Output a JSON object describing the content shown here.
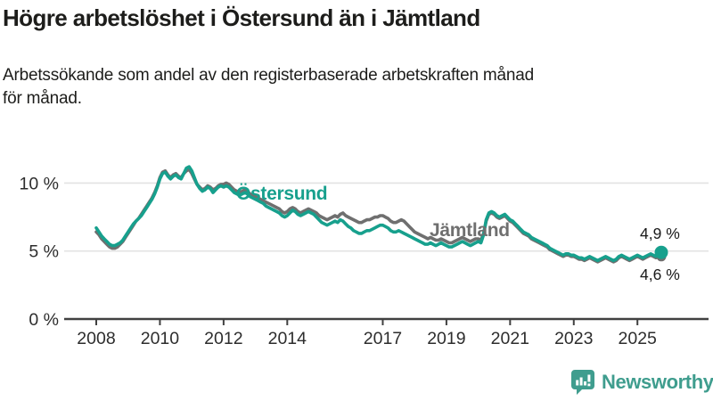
{
  "header": {
    "title": "Högre arbetslöshet i Östersund än i Jämtland",
    "subtitle": "Arbetssökande som andel av den registerbaserade arbetskraften månad\nför månad."
  },
  "chart_data": {
    "type": "line",
    "frequency": "monthly",
    "x_start": "2008-01",
    "x_end": "2025-10",
    "unit": "%",
    "ylim": [
      0,
      12
    ],
    "grid": "horizontal",
    "legend_position": "inline-labels",
    "x_ticks": [
      2008,
      2010,
      2012,
      2014,
      2017,
      2019,
      2021,
      2023,
      2025
    ],
    "y_ticks": [
      {
        "value": 0,
        "label": "0 %"
      },
      {
        "value": 5,
        "label": "5 %"
      },
      {
        "value": 10,
        "label": "10 %"
      }
    ],
    "series": [
      {
        "name": "Östersund",
        "color": "#17a08d",
        "end_label": "4,9 %",
        "end_value": 4.9,
        "values": [
          6.7,
          6.4,
          6.1,
          5.9,
          5.7,
          5.5,
          5.4,
          5.4,
          5.5,
          5.6,
          5.8,
          6.1,
          6.4,
          6.7,
          7.0,
          7.2,
          7.4,
          7.6,
          7.9,
          8.2,
          8.5,
          8.8,
          9.2,
          9.7,
          10.3,
          10.7,
          10.8,
          10.5,
          10.3,
          10.5,
          10.6,
          10.4,
          10.3,
          10.7,
          11.1,
          11.2,
          10.9,
          10.4,
          9.9,
          9.6,
          9.4,
          9.5,
          9.7,
          9.6,
          9.3,
          9.5,
          9.7,
          9.8,
          9.7,
          9.8,
          9.7,
          9.5,
          9.3,
          9.2,
          9.1,
          9.2,
          9.3,
          9.2,
          9.0,
          8.9,
          8.8,
          8.7,
          8.6,
          8.5,
          8.3,
          8.2,
          8.1,
          8.0,
          7.9,
          7.8,
          7.6,
          7.5,
          7.6,
          7.8,
          8.0,
          7.9,
          7.7,
          7.6,
          7.7,
          7.8,
          7.9,
          7.8,
          7.7,
          7.5,
          7.3,
          7.1,
          7.0,
          6.9,
          7.0,
          7.1,
          7.2,
          7.1,
          7.3,
          7.2,
          7.0,
          6.8,
          6.7,
          6.5,
          6.4,
          6.3,
          6.3,
          6.4,
          6.5,
          6.5,
          6.6,
          6.7,
          6.8,
          6.9,
          6.9,
          6.8,
          6.7,
          6.5,
          6.4,
          6.4,
          6.5,
          6.4,
          6.3,
          6.2,
          6.1,
          6.0,
          5.9,
          5.8,
          5.7,
          5.6,
          5.5,
          5.5,
          5.6,
          5.5,
          5.4,
          5.5,
          5.6,
          5.5,
          5.4,
          5.3,
          5.3,
          5.4,
          5.5,
          5.6,
          5.7,
          5.6,
          5.5,
          5.4,
          5.5,
          5.6,
          5.7,
          5.6,
          6.2,
          7.3,
          7.8,
          7.9,
          7.8,
          7.6,
          7.5,
          7.6,
          7.7,
          7.5,
          7.3,
          7.2,
          7.0,
          6.8,
          6.6,
          6.4,
          6.3,
          6.2,
          6.0,
          5.9,
          5.8,
          5.7,
          5.6,
          5.5,
          5.4,
          5.2,
          5.1,
          5.0,
          4.9,
          4.8,
          4.7,
          4.8,
          4.8,
          4.7,
          4.7,
          4.6,
          4.5,
          4.5,
          4.4,
          4.5,
          4.6,
          4.5,
          4.4,
          4.3,
          4.4,
          4.5,
          4.6,
          4.5,
          4.4,
          4.3,
          4.4,
          4.6,
          4.7,
          4.6,
          4.5,
          4.4,
          4.5,
          4.6,
          4.7,
          4.6,
          4.5,
          4.6,
          4.7,
          4.8,
          4.7,
          4.6,
          4.8,
          4.9
        ]
      },
      {
        "name": "Jämtland",
        "color": "#6f6f6f",
        "end_label": "4,6 %",
        "end_value": 4.6,
        "values": [
          6.4,
          6.2,
          5.9,
          5.7,
          5.5,
          5.3,
          5.2,
          5.2,
          5.3,
          5.5,
          5.7,
          6.0,
          6.3,
          6.6,
          6.9,
          7.2,
          7.4,
          7.7,
          8.0,
          8.3,
          8.6,
          8.9,
          9.3,
          9.8,
          10.4,
          10.8,
          10.9,
          10.6,
          10.4,
          10.6,
          10.7,
          10.5,
          10.4,
          10.7,
          10.9,
          11.0,
          10.7,
          10.3,
          9.9,
          9.7,
          9.5,
          9.6,
          9.8,
          9.7,
          9.5,
          9.6,
          9.8,
          9.9,
          9.9,
          10.0,
          9.9,
          9.7,
          9.5,
          9.4,
          9.3,
          9.4,
          9.5,
          9.4,
          9.2,
          9.1,
          9.0,
          8.9,
          8.8,
          8.7,
          8.6,
          8.5,
          8.4,
          8.3,
          8.2,
          8.1,
          7.9,
          7.8,
          7.9,
          8.1,
          8.2,
          8.1,
          7.9,
          7.8,
          7.9,
          8.0,
          8.1,
          8.0,
          7.9,
          7.8,
          7.6,
          7.5,
          7.4,
          7.3,
          7.4,
          7.5,
          7.6,
          7.5,
          7.7,
          7.8,
          7.6,
          7.5,
          7.4,
          7.3,
          7.2,
          7.1,
          7.1,
          7.2,
          7.3,
          7.3,
          7.4,
          7.5,
          7.5,
          7.6,
          7.6,
          7.5,
          7.4,
          7.2,
          7.1,
          7.1,
          7.2,
          7.3,
          7.2,
          7.0,
          6.8,
          6.6,
          6.4,
          6.3,
          6.2,
          6.1,
          6.0,
          5.9,
          6.0,
          5.9,
          5.8,
          5.8,
          5.9,
          5.8,
          5.7,
          5.6,
          5.6,
          5.7,
          5.8,
          5.9,
          6.0,
          5.9,
          5.8,
          5.7,
          5.8,
          5.9,
          5.9,
          5.8,
          6.3,
          7.2,
          7.7,
          7.8,
          7.7,
          7.5,
          7.4,
          7.5,
          7.6,
          7.4,
          7.2,
          7.1,
          6.9,
          6.7,
          6.5,
          6.3,
          6.2,
          6.1,
          5.9,
          5.8,
          5.7,
          5.6,
          5.5,
          5.4,
          5.3,
          5.1,
          5.0,
          4.9,
          4.8,
          4.7,
          4.6,
          4.7,
          4.7,
          4.6,
          4.6,
          4.5,
          4.4,
          4.4,
          4.3,
          4.4,
          4.5,
          4.4,
          4.3,
          4.2,
          4.3,
          4.4,
          4.5,
          4.4,
          4.3,
          4.2,
          4.3,
          4.5,
          4.6,
          4.5,
          4.4,
          4.3,
          4.4,
          4.5,
          4.6,
          4.5,
          4.4,
          4.5,
          4.6,
          4.7,
          4.6,
          4.5,
          4.6,
          4.6
        ]
      }
    ],
    "colors": {
      "gridline": "#e3e3e3",
      "axis": "#414141",
      "tick_text": "#2d2d2d",
      "annotation_text": "#1a1a1a"
    }
  },
  "footer": {
    "brand": "Newsworthy",
    "brand_color": "#3f9d8e"
  }
}
